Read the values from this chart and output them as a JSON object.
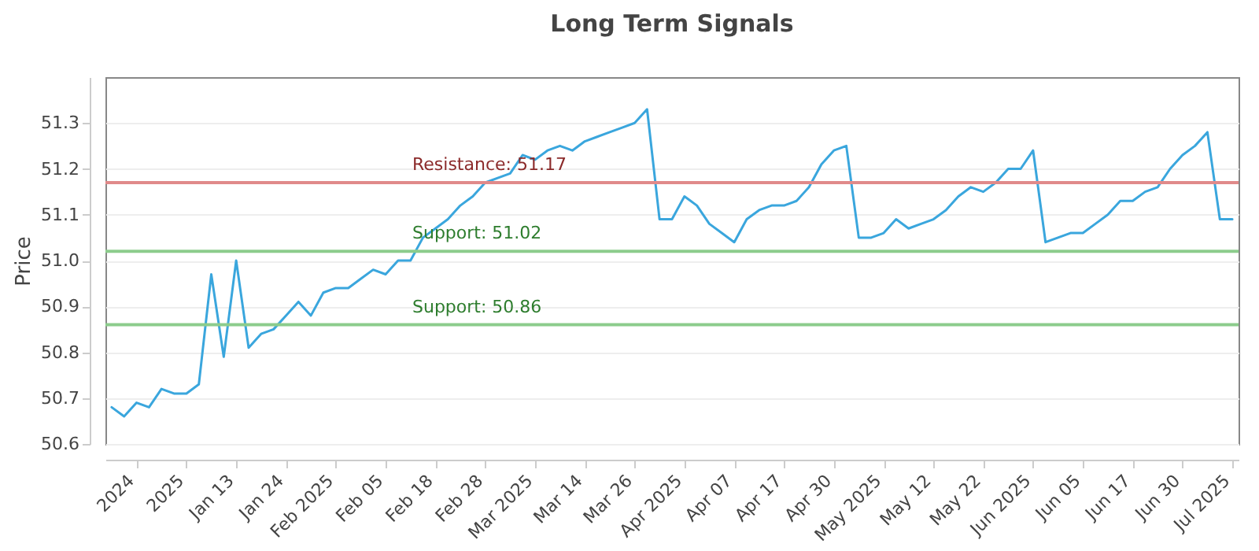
{
  "chart_data": {
    "type": "line",
    "title": "Long Term Signals",
    "ylabel": "Price",
    "categories": [
      null,
      null,
      "2024",
      null,
      null,
      null,
      "2025",
      null,
      null,
      null,
      "Jan 13",
      null,
      null,
      null,
      "Jan 24",
      null,
      null,
      null,
      "Feb 2025",
      null,
      null,
      null,
      "Feb 05",
      null,
      null,
      null,
      "Feb 18",
      null,
      null,
      null,
      "Feb 28",
      null,
      null,
      null,
      "Mar 2025",
      null,
      null,
      null,
      "Mar 14",
      null,
      null,
      null,
      "Mar 26",
      null,
      null,
      null,
      "Apr 2025",
      null,
      null,
      null,
      "Apr 07",
      null,
      null,
      null,
      "Apr 17",
      null,
      null,
      null,
      "Apr 30",
      null,
      null,
      null,
      "May 2025",
      null,
      null,
      null,
      "May 12",
      null,
      null,
      null,
      "May 22",
      null,
      null,
      null,
      "Jun 2025",
      null,
      null,
      null,
      "Jun 05",
      null,
      null,
      null,
      "Jun 17",
      null,
      null,
      null,
      "Jun 30",
      null,
      null,
      null,
      "Jul 2025"
    ],
    "series": [
      {
        "color": "#3aa6dd",
        "values": [
          50.68,
          50.66,
          50.69,
          50.68,
          50.72,
          50.71,
          50.71,
          50.73,
          50.97,
          50.79,
          51.0,
          50.81,
          50.84,
          50.85,
          50.88,
          50.91,
          50.88,
          50.93,
          50.94,
          50.94,
          50.96,
          50.98,
          50.97,
          51.0,
          51.0,
          51.05,
          51.07,
          51.09,
          51.12,
          51.14,
          51.17,
          51.18,
          51.19,
          51.23,
          51.22,
          51.24,
          51.25,
          51.24,
          51.26,
          51.27,
          51.28,
          51.29,
          51.3,
          51.33,
          51.09,
          51.09,
          51.14,
          51.12,
          51.08,
          51.06,
          51.04,
          51.09,
          51.11,
          51.12,
          51.12,
          51.13,
          51.16,
          51.21,
          51.24,
          51.25,
          51.05,
          51.05,
          51.06,
          51.09,
          51.07,
          51.08,
          51.09,
          51.11,
          51.14,
          51.16,
          51.15,
          51.17,
          51.2,
          51.2,
          51.24,
          51.04,
          51.05,
          51.06,
          51.06,
          51.08,
          51.1,
          51.13,
          51.13,
          51.15,
          51.16,
          51.2,
          51.23,
          51.25,
          51.28,
          51.09,
          51.09
        ]
      }
    ],
    "ylim": [
      50.6,
      51.4
    ],
    "yticks": [
      50.6,
      50.7,
      50.8,
      50.9,
      {
        "value": 51,
        "label": "51.0"
      },
      51.1,
      51.2,
      51.3
    ],
    "ref_lines": [
      {
        "axis": "y",
        "value": 51.17,
        "label": "Resistance: 51.17",
        "color": "#e08a8a"
      },
      {
        "axis": "y",
        "value": 51.02,
        "label": "Support: 51.02",
        "color": "#8ccc8c"
      },
      {
        "axis": "y",
        "value": 50.86,
        "label": "Support: 50.86",
        "color": "#8ccc8c"
      }
    ],
    "grid": "y",
    "marker": "none",
    "line_style": "solid"
  }
}
